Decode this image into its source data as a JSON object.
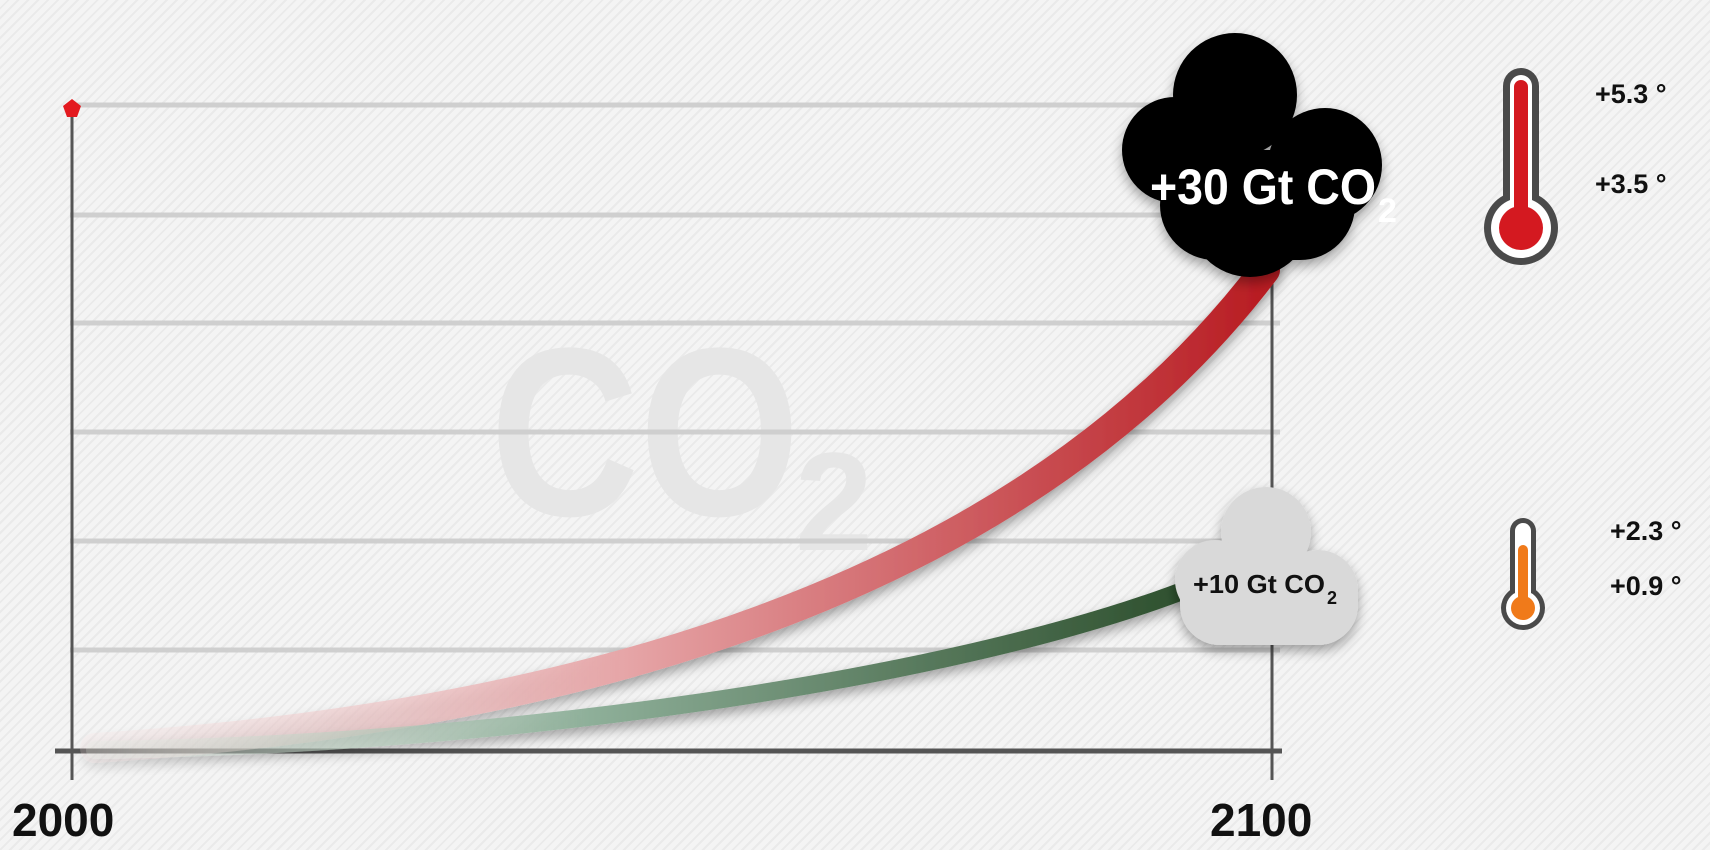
{
  "chart_data": {
    "type": "line",
    "x_start_label": "2000",
    "x_end_label": "2100",
    "xlim": [
      2000,
      2100
    ],
    "grid": true,
    "series": [
      {
        "scenario": "high",
        "color": "#b81c22",
        "end_label": "+30 Gt CO",
        "end_label_sub": "2",
        "end_value": 30,
        "cloud_color": "#000000",
        "temp_high": "+5.3 °",
        "temp_low": "+3.5 °",
        "thermometer_color": "#d41920"
      },
      {
        "scenario": "low",
        "color": "#2d4f2d",
        "end_label": "+10 Gt CO",
        "end_label_sub": "2",
        "end_value": 10,
        "cloud_color": "#d9d9d9",
        "temp_high": "+2.3 °",
        "temp_low": "+0.9 °",
        "thermometer_color": "#f07a1a"
      }
    ],
    "watermark_main": "CO",
    "watermark_sub": "2"
  },
  "colors": {
    "axis": "#555555",
    "grid": "#cfcfcf",
    "marker": "#e3191f"
  },
  "icons": {
    "start_marker": "pentagon-marker-icon",
    "cloud_high": "cloud-icon",
    "cloud_low": "cloud-icon",
    "thermometer_high": "thermometer-icon",
    "thermometer_low": "thermometer-icon"
  }
}
